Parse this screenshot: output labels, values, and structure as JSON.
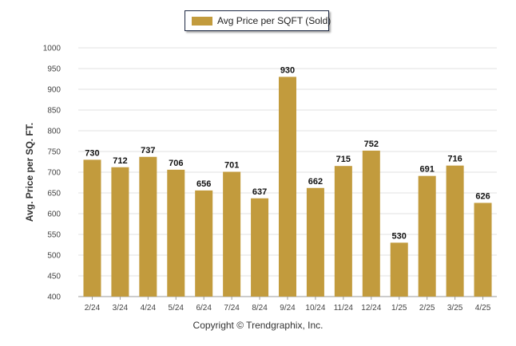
{
  "chart_data": {
    "type": "bar",
    "categories": [
      "2/24",
      "3/24",
      "4/24",
      "5/24",
      "6/24",
      "7/24",
      "8/24",
      "9/24",
      "10/24",
      "11/24",
      "12/24",
      "1/25",
      "2/25",
      "3/25",
      "4/25"
    ],
    "series": [
      {
        "name": "Avg Price per SQFT (Sold)",
        "values": [
          730,
          712,
          737,
          706,
          656,
          701,
          637,
          930,
          662,
          715,
          752,
          530,
          691,
          716,
          626
        ]
      }
    ],
    "ylabel": "Avg. Price per SQ. FT.",
    "xlabel": "",
    "ylim": [
      400,
      1000
    ],
    "yticks": [
      400,
      450,
      500,
      550,
      600,
      650,
      700,
      750,
      800,
      850,
      900,
      950,
      1000
    ],
    "grid": true,
    "legend": "top-center",
    "data_labels": true
  },
  "colors": {
    "bar": "#c29b3d",
    "grid": "#e2e2e2",
    "axis": "#9a9a9a"
  },
  "footer": {
    "copyright": "Copyright © Trendgraphix, Inc."
  }
}
